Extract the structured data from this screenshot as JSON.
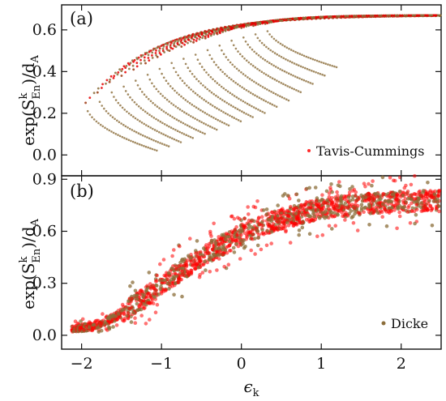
{
  "chart_data": [
    {
      "panel": "(a)",
      "type": "scatter",
      "xlabel": "ϵ_k",
      "ylabel": "exp(S^k_En)/d_A",
      "xlim": [
        -2.25,
        2.5
      ],
      "ylim": [
        -0.1,
        0.72
      ],
      "x_ticks": [
        "−2",
        "−1",
        "0",
        "1",
        "2"
      ],
      "y_ticks": [
        "0.0",
        "0.2",
        "0.4",
        "0.6"
      ],
      "y_tick_values": [
        0.0,
        0.2,
        0.4,
        0.6
      ],
      "legend": [
        {
          "label": "Tavis-Cummings",
          "marker": "dot",
          "color": "#ff0000"
        }
      ],
      "legend_position": "bottom-right",
      "series": [
        {
          "name": "Tavis-Cummings",
          "description_points": "arc branches: each branch starts at y=s on the left and rises to ~0.67, with a lower tail descending to the bottom",
          "branch_start_x": [
            -1.95,
            -1.8,
            -1.65,
            -1.5,
            -1.35,
            -1.2,
            -1.05,
            -0.9,
            -0.75,
            -0.6,
            -0.45,
            -0.3,
            -0.15,
            0.0,
            0.15,
            0.3
          ],
          "branch_start_y": [
            0.25,
            0.3,
            0.35,
            0.38,
            0.41,
            0.44,
            0.47,
            0.5,
            0.52,
            0.54,
            0.56,
            0.58,
            0.6,
            0.61,
            0.62,
            0.63
          ],
          "plateau_y": 0.67,
          "tail_end_y": [
            0.02,
            0.04,
            0.06,
            0.08,
            0.1,
            0.12,
            0.14,
            0.16,
            0.18,
            0.2,
            0.23,
            0.26,
            0.3,
            0.34,
            0.38,
            0.42
          ],
          "colors": [
            "#e60000",
            "#8b6d3a"
          ]
        }
      ]
    },
    {
      "panel": "(b)",
      "type": "scatter",
      "xlabel": "ϵ_k",
      "ylabel": "exp(S^k_En)/d_A",
      "xlim": [
        -2.25,
        2.5
      ],
      "ylim": [
        -0.08,
        0.92
      ],
      "x_ticks": [
        "−2",
        "−1",
        "0",
        "1",
        "2"
      ],
      "x_tick_values": [
        -2,
        -1,
        0,
        1,
        2
      ],
      "y_ticks": [
        "0.0",
        "0.3",
        "0.6",
        "0.9"
      ],
      "y_tick_values": [
        0.0,
        0.3,
        0.6,
        0.9
      ],
      "legend": [
        {
          "label": "Dicke",
          "marker": "dot",
          "color": "#8b6d3a"
        }
      ],
      "legend_position": "bottom-right",
      "series": [
        {
          "name": "Dicke",
          "trend_x": [
            -2.1,
            -1.9,
            -1.6,
            -1.2,
            -0.8,
            -0.4,
            0.0,
            0.4,
            0.8,
            1.2,
            1.6,
            2.0,
            2.4
          ],
          "trend_y": [
            0.03,
            0.05,
            0.1,
            0.22,
            0.36,
            0.48,
            0.58,
            0.66,
            0.71,
            0.74,
            0.76,
            0.77,
            0.78
          ],
          "spread": 0.06,
          "colors": [
            "#ff0000",
            "#8b6d3a"
          ]
        }
      ]
    }
  ],
  "labels": {
    "panel_a": "(a)",
    "panel_b": "(b)",
    "legend_a": "Tavis-Cummings",
    "legend_b": "Dicke",
    "xlabel_main": "ϵ",
    "xlabel_sub": "k",
    "ylabel_a": "exp(S",
    "ylabel_sup": "k",
    "ylabel_sub": "En",
    "ylabel_tail": ")/d",
    "ylabel_tail_sub": "A"
  }
}
